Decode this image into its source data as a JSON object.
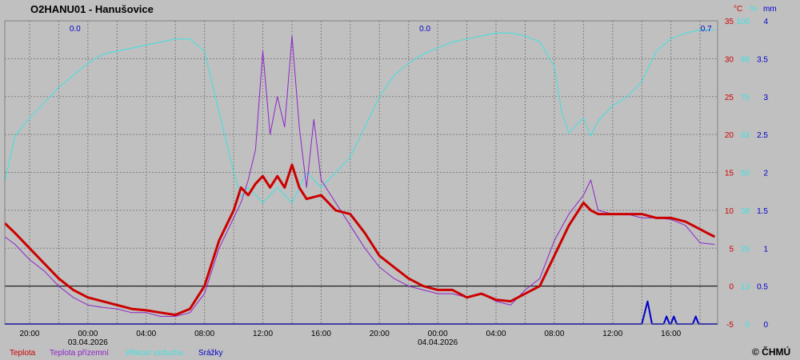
{
  "chart_data": {
    "type": "line",
    "title": "O2HANU01 - Hanušovice",
    "copyright": "© ČHMÚ",
    "units": {
      "temperature": "°C",
      "humidity": "%",
      "precipitation": "mm"
    },
    "x_ticks": [
      "20:00",
      "00:00",
      "04:00",
      "08:00",
      "12:00",
      "16:00",
      "20:00",
      "00:00",
      "04:00",
      "08:00",
      "12:00",
      "16:00"
    ],
    "x_ticks_hours": [
      20,
      24,
      28,
      32,
      36,
      40,
      44,
      48,
      52,
      56,
      60,
      64
    ],
    "date_labels": [
      {
        "label": "03.04.2026",
        "hour": 24
      },
      {
        "label": "04.04.2026",
        "hour": 48
      }
    ],
    "xlim": [
      18.3,
      67.2
    ],
    "y_temperature": {
      "ylim": [
        -5,
        35
      ],
      "ticks": [
        -5,
        0,
        5,
        10,
        15,
        20,
        25,
        30,
        35
      ]
    },
    "y_humidity_ticks": [
      "0",
      "13",
      "25",
      "38",
      "50",
      "63",
      "75",
      "88",
      "100"
    ],
    "y_precip_ticks": [
      "0",
      "0.5",
      "1",
      "1.5",
      "2",
      "2.5",
      "3",
      "3.5",
      "4"
    ],
    "precip_daily_totals": [
      {
        "label": "0.0",
        "hour": 23.5
      },
      {
        "label": "0.0",
        "hour": 47.5
      },
      {
        "label": "0.7",
        "hour": 66.8
      }
    ],
    "colors": {
      "temperature": "#cc0000",
      "ground_temperature": "#8e24c8",
      "humidity": "#40e0e0",
      "precipitation": "#0000cc",
      "background": "#c0c0c0",
      "grid": "#808080"
    },
    "grid": true,
    "legend": [
      "Teplota",
      "Teplota přízemní",
      "Vlhkost vzduchu",
      "Srážky"
    ],
    "series": [
      {
        "name": "Teplota",
        "axis": "temperature",
        "points": [
          [
            18.3,
            8.3
          ],
          [
            19,
            7
          ],
          [
            20,
            5
          ],
          [
            21,
            3
          ],
          [
            22,
            1
          ],
          [
            23,
            -0.5
          ],
          [
            24,
            -1.5
          ],
          [
            25,
            -2
          ],
          [
            26,
            -2.5
          ],
          [
            27,
            -3
          ],
          [
            28,
            -3.2
          ],
          [
            29,
            -3.5
          ],
          [
            30,
            -3.8
          ],
          [
            31,
            -3
          ],
          [
            32,
            0
          ],
          [
            33,
            6
          ],
          [
            34,
            10
          ],
          [
            34.5,
            13
          ],
          [
            35,
            12
          ],
          [
            35.5,
            13.5
          ],
          [
            36,
            14.5
          ],
          [
            36.5,
            13
          ],
          [
            37,
            14.5
          ],
          [
            37.5,
            13
          ],
          [
            38,
            16
          ],
          [
            38.5,
            13
          ],
          [
            39,
            11.5
          ],
          [
            40,
            12
          ],
          [
            41,
            10
          ],
          [
            42,
            9.5
          ],
          [
            43,
            7
          ],
          [
            44,
            4
          ],
          [
            45,
            2.5
          ],
          [
            46,
            1
          ],
          [
            47,
            0
          ],
          [
            48,
            -0.5
          ],
          [
            49,
            -0.5
          ],
          [
            50,
            -1.5
          ],
          [
            51,
            -1
          ],
          [
            52,
            -1.8
          ],
          [
            53,
            -2
          ],
          [
            54,
            -1
          ],
          [
            55,
            0
          ],
          [
            56,
            4
          ],
          [
            57,
            8
          ],
          [
            58,
            11
          ],
          [
            58.5,
            10
          ],
          [
            59,
            9.5
          ],
          [
            60,
            9.5
          ],
          [
            61,
            9.5
          ],
          [
            62,
            9.5
          ],
          [
            63,
            9
          ],
          [
            64,
            9
          ],
          [
            65,
            8.5
          ],
          [
            66,
            7.5
          ],
          [
            67,
            6.5
          ]
        ]
      },
      {
        "name": "Teplota přízemní",
        "axis": "temperature",
        "points": [
          [
            18.3,
            6.5
          ],
          [
            19,
            5.5
          ],
          [
            20,
            3.5
          ],
          [
            21,
            2
          ],
          [
            22,
            0
          ],
          [
            23,
            -1.5
          ],
          [
            24,
            -2.5
          ],
          [
            25,
            -2.8
          ],
          [
            26,
            -3
          ],
          [
            27,
            -3.5
          ],
          [
            28,
            -3.5
          ],
          [
            29,
            -4
          ],
          [
            30,
            -4
          ],
          [
            31,
            -3.5
          ],
          [
            32,
            -1
          ],
          [
            33,
            5
          ],
          [
            34,
            9
          ],
          [
            34.5,
            11
          ],
          [
            35,
            14
          ],
          [
            35.5,
            18
          ],
          [
            36,
            31
          ],
          [
            36.5,
            20
          ],
          [
            37,
            25
          ],
          [
            37.5,
            21
          ],
          [
            38,
            33
          ],
          [
            38.5,
            21
          ],
          [
            39,
            13
          ],
          [
            39.5,
            22
          ],
          [
            40,
            14
          ],
          [
            41,
            11
          ],
          [
            42,
            8
          ],
          [
            43,
            5
          ],
          [
            44,
            2.5
          ],
          [
            45,
            1
          ],
          [
            46,
            0
          ],
          [
            47,
            -0.5
          ],
          [
            48,
            -1
          ],
          [
            49,
            -1
          ],
          [
            50,
            -1.5
          ],
          [
            51,
            -1
          ],
          [
            52,
            -2
          ],
          [
            53,
            -2.5
          ],
          [
            54,
            -0.5
          ],
          [
            55,
            1
          ],
          [
            56,
            6
          ],
          [
            57,
            9.5
          ],
          [
            58,
            12
          ],
          [
            58.5,
            14
          ],
          [
            59,
            10
          ],
          [
            60,
            9.5
          ],
          [
            61,
            9.5
          ],
          [
            62,
            9
          ],
          [
            63,
            9
          ],
          [
            64,
            8.8
          ],
          [
            65,
            8
          ],
          [
            66,
            5.7
          ],
          [
            67,
            5.5
          ]
        ]
      },
      {
        "name": "Vlhkost vzduchu",
        "axis": "humidity",
        "points": [
          [
            18.3,
            47
          ],
          [
            19,
            62
          ],
          [
            20,
            68
          ],
          [
            21,
            73
          ],
          [
            22,
            78
          ],
          [
            23,
            82
          ],
          [
            24,
            86
          ],
          [
            25,
            89
          ],
          [
            26,
            90
          ],
          [
            27,
            91
          ],
          [
            28,
            92
          ],
          [
            29,
            93
          ],
          [
            30,
            94
          ],
          [
            31,
            94
          ],
          [
            32,
            90
          ],
          [
            33,
            70
          ],
          [
            34,
            50
          ],
          [
            34.5,
            42
          ],
          [
            35,
            45
          ],
          [
            36,
            40
          ],
          [
            37,
            45
          ],
          [
            38,
            40
          ],
          [
            39,
            50
          ],
          [
            40,
            45
          ],
          [
            41,
            50
          ],
          [
            42,
            55
          ],
          [
            43,
            65
          ],
          [
            44,
            75
          ],
          [
            45,
            82
          ],
          [
            46,
            86
          ],
          [
            47,
            89
          ],
          [
            48,
            91
          ],
          [
            49,
            93
          ],
          [
            50,
            94
          ],
          [
            51,
            95
          ],
          [
            52,
            96
          ],
          [
            53,
            96
          ],
          [
            54,
            95
          ],
          [
            55,
            93
          ],
          [
            56,
            85
          ],
          [
            56.5,
            70
          ],
          [
            57,
            63
          ],
          [
            58,
            68
          ],
          [
            58.5,
            62
          ],
          [
            59,
            67
          ],
          [
            60,
            72
          ],
          [
            61,
            75
          ],
          [
            62,
            80
          ],
          [
            63,
            90
          ],
          [
            64,
            94
          ],
          [
            65,
            96
          ],
          [
            66,
            97
          ],
          [
            67,
            97
          ]
        ]
      },
      {
        "name": "Srážky",
        "axis": "precipitation",
        "points": [
          [
            18.3,
            0
          ],
          [
            62,
            0
          ],
          [
            62.4,
            0.3
          ],
          [
            62.7,
            0
          ],
          [
            63.5,
            0
          ],
          [
            63.7,
            0.1
          ],
          [
            63.9,
            0
          ],
          [
            64,
            0
          ],
          [
            64.2,
            0.1
          ],
          [
            64.4,
            0
          ],
          [
            65.5,
            0
          ],
          [
            65.7,
            0.1
          ],
          [
            65.9,
            0
          ],
          [
            67.2,
            0
          ]
        ]
      }
    ]
  }
}
